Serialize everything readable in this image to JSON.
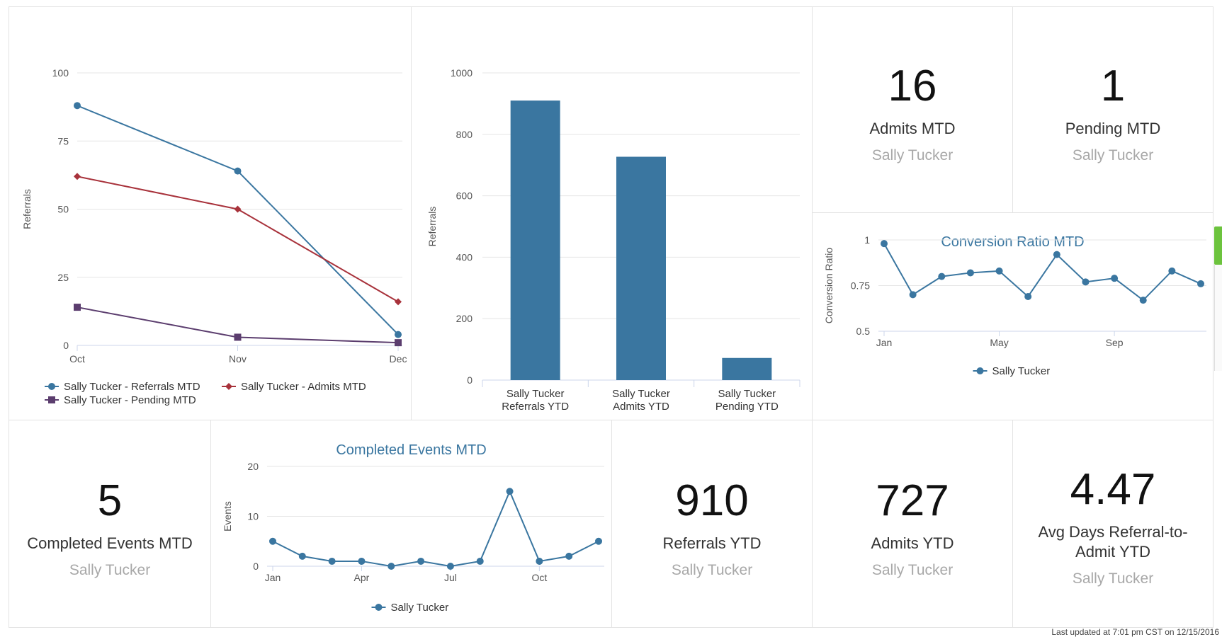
{
  "kpis": {
    "admits_mtd": {
      "value": "16",
      "label": "Admits MTD",
      "sub": "Sally Tucker"
    },
    "pending_mtd": {
      "value": "1",
      "label": "Pending MTD",
      "sub": "Sally Tucker"
    },
    "completed_events_mtd": {
      "value": "5",
      "label": "Completed Events MTD",
      "sub": "Sally Tucker"
    },
    "referrals_ytd": {
      "value": "910",
      "label": "Referrals YTD",
      "sub": "Sally Tucker"
    },
    "admits_ytd": {
      "value": "727",
      "label": "Admits YTD",
      "sub": "Sally Tucker"
    },
    "avg_days": {
      "value": "4.47",
      "label": "Avg Days Referral-to-Admit YTD",
      "sub": "Sally Tucker"
    }
  },
  "footer": {
    "text": "Last updated at 7:01 pm CST on 12/15/2016"
  },
  "colors": {
    "blue": "#3a76a0",
    "red": "#a8323b",
    "purple": "#5b3d6e",
    "grid": "#e6e6e6",
    "accent_green": "#6cc33d",
    "title_blue": "#3a76a0"
  },
  "chart_data": [
    {
      "id": "referrals_mtd_line",
      "type": "line",
      "title": "",
      "xlabel": "",
      "ylabel": "Referrals",
      "categories": [
        "Oct",
        "Nov",
        "Dec"
      ],
      "ylim": [
        0,
        100
      ],
      "yticks": [
        0,
        25,
        50,
        75,
        100
      ],
      "series": [
        {
          "name": "Sally Tucker - Referrals MTD",
          "marker": "circle",
          "color": "#3a76a0",
          "values": [
            88,
            64,
            4
          ]
        },
        {
          "name": "Sally Tucker - Admits MTD",
          "marker": "diamond",
          "color": "#a8323b",
          "values": [
            62,
            50,
            16
          ]
        },
        {
          "name": "Sally Tucker - Pending MTD",
          "marker": "square",
          "color": "#5b3d6e",
          "values": [
            14,
            3,
            1
          ]
        }
      ],
      "legend": "bottom"
    },
    {
      "id": "ytd_bar",
      "type": "bar",
      "title": "",
      "xlabel": "",
      "ylabel": "Referrals",
      "categories": [
        [
          "Sally Tucker",
          "Referrals YTD"
        ],
        [
          "Sally Tucker",
          "Admits YTD"
        ],
        [
          "Sally Tucker",
          "Pending YTD"
        ]
      ],
      "values": [
        910,
        727,
        72
      ],
      "ylim": [
        0,
        1000
      ],
      "yticks": [
        0,
        200,
        400,
        600,
        800,
        1000
      ],
      "color": "#3a76a0"
    },
    {
      "id": "conversion_ratio_line",
      "type": "line",
      "title": "Conversion Ratio MTD",
      "xlabel": "",
      "ylabel": "Conversion Ratio",
      "x": [
        1,
        2,
        3,
        4,
        5,
        6,
        7,
        8,
        9,
        10,
        11,
        12
      ],
      "xticks": [
        {
          "x": 1,
          "label": "Jan"
        },
        {
          "x": 5,
          "label": "May"
        },
        {
          "x": 9,
          "label": "Sep"
        }
      ],
      "ytick_labels": [
        "0.5",
        "0.75",
        "1"
      ],
      "yticks": [
        0.5,
        0.75,
        1
      ],
      "ylim": [
        0.5,
        1
      ],
      "series": [
        {
          "name": "Sally Tucker",
          "color": "#3a76a0",
          "values": [
            0.98,
            0.7,
            0.8,
            0.82,
            0.83,
            0.69,
            0.92,
            0.77,
            0.79,
            0.67,
            0.83,
            0.76
          ]
        }
      ],
      "legend": "bottom"
    },
    {
      "id": "completed_events_line",
      "type": "line",
      "title": "Completed Events MTD",
      "xlabel": "",
      "ylabel": "Events",
      "x": [
        1,
        2,
        3,
        4,
        5,
        6,
        7,
        8,
        9,
        10,
        11,
        12
      ],
      "xticks": [
        {
          "x": 1,
          "label": "Jan"
        },
        {
          "x": 4,
          "label": "Apr"
        },
        {
          "x": 7,
          "label": "Jul"
        },
        {
          "x": 10,
          "label": "Oct"
        }
      ],
      "yticks": [
        0,
        10,
        20
      ],
      "ylim": [
        0,
        20
      ],
      "series": [
        {
          "name": "Sally Tucker",
          "color": "#3a76a0",
          "values": [
            5,
            2,
            1,
            1,
            0,
            1,
            0,
            1,
            15,
            1,
            2,
            5
          ]
        }
      ],
      "legend": "bottom"
    }
  ]
}
